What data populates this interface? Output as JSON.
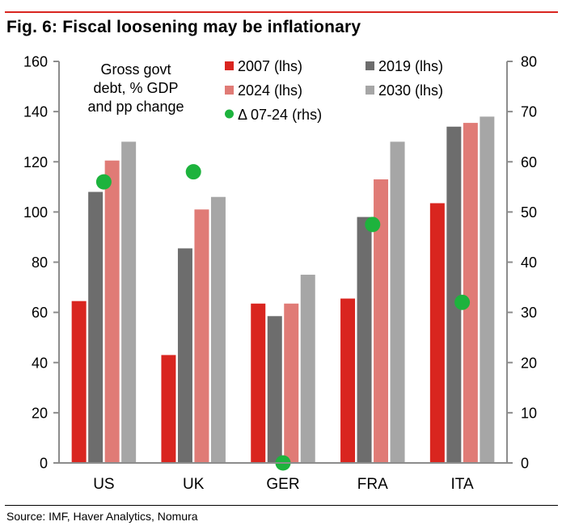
{
  "figure": {
    "title": "Fig. 6: Fiscal loosening may be inflationary",
    "source": "Source: IMF, Haver Analytics, Nomura"
  },
  "chart_data": {
    "type": "bar",
    "title": "Gross govt debt, % GDP and pp change",
    "title_lines": [
      "Gross govt",
      "debt, % GDP",
      "and pp change"
    ],
    "categories": [
      "US",
      "UK",
      "GER",
      "FRA",
      "ITA"
    ],
    "series": [
      {
        "name": "2007 (lhs)",
        "legend_label": "2007 (lhs)",
        "axis": "left",
        "color": "#d9251f",
        "values": [
          64.5,
          43,
          63.5,
          65.5,
          103.5
        ]
      },
      {
        "name": "2019 (lhs)",
        "legend_label": "2019 (lhs)",
        "axis": "left",
        "color": "#6d6d6d",
        "values": [
          108,
          85.5,
          58.5,
          98,
          134
        ]
      },
      {
        "name": "2024 (lhs)",
        "legend_label": "2024 (lhs)",
        "axis": "left",
        "color": "#e07b76",
        "values": [
          120.5,
          101,
          63.5,
          113,
          135.5
        ]
      },
      {
        "name": "2030 (lhs)",
        "legend_label": "2030 (lhs)",
        "axis": "left",
        "color": "#a6a6a6",
        "values": [
          128,
          106,
          75,
          128,
          138
        ]
      },
      {
        "name": "Δ 07-24 (rhs)",
        "legend_label": "Δ 07-24 (rhs)",
        "axis": "right",
        "type": "scatter",
        "color": "#1db33d",
        "values": [
          56,
          58,
          0,
          47.5,
          32
        ]
      }
    ],
    "y_left": {
      "min": 0,
      "max": 160,
      "step": 20,
      "ticks": [
        "0",
        "20",
        "40",
        "60",
        "80",
        "100",
        "120",
        "140",
        "160"
      ]
    },
    "y_right": {
      "min": 0,
      "max": 80,
      "step": 10,
      "ticks": [
        "0",
        "10",
        "20",
        "30",
        "40",
        "50",
        "60",
        "70",
        "80"
      ]
    },
    "grid": false,
    "legend_position": "top"
  }
}
